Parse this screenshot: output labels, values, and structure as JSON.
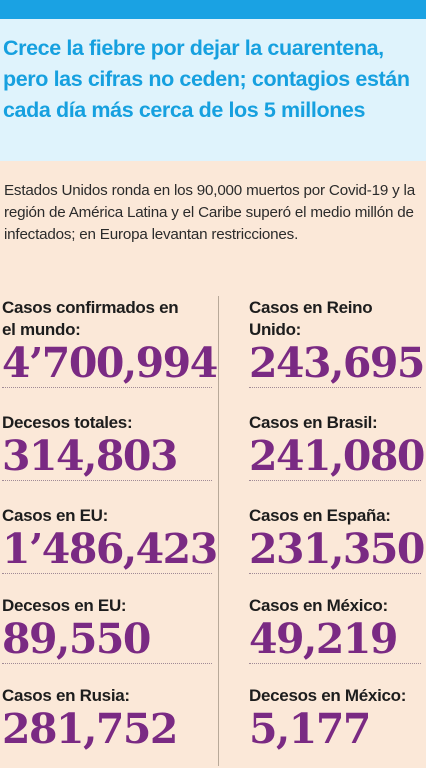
{
  "headline": "Crece la fiebre por dejar la cuarentena, pero las cifras no ceden; contagios están cada día más cerca de los 5 millones",
  "deck": "Estados Unidos ronda en los 90,000 muertos por Covid-19 y la región de América Latina y el Caribe superó el medio millón de infectados; en Europa levantan restricciones.",
  "left_stats": [
    {
      "label": "Casos confirmados en el mundo:",
      "value": "4’700,994"
    },
    {
      "label": "Decesos totales:",
      "value": "314,803"
    },
    {
      "label": "Casos en EU:",
      "value": "1’486,423"
    },
    {
      "label": "Decesos en EU:",
      "value": "89,550"
    },
    {
      "label": "Casos en Rusia:",
      "value": "281,752"
    }
  ],
  "right_stats": [
    {
      "label": "Casos en Reino Unido:",
      "value": "243,695"
    },
    {
      "label": "Casos en Brasil:",
      "value": "241,080"
    },
    {
      "label": "Casos en España:",
      "value": "231,350"
    },
    {
      "label": "Casos en México:",
      "value": "49,219"
    },
    {
      "label": "Decesos en México:",
      "value": "5,177"
    }
  ],
  "colors": {
    "accent_blue": "#16a0df",
    "number_purple": "#7a2a83",
    "background": "#fbe8d8"
  }
}
